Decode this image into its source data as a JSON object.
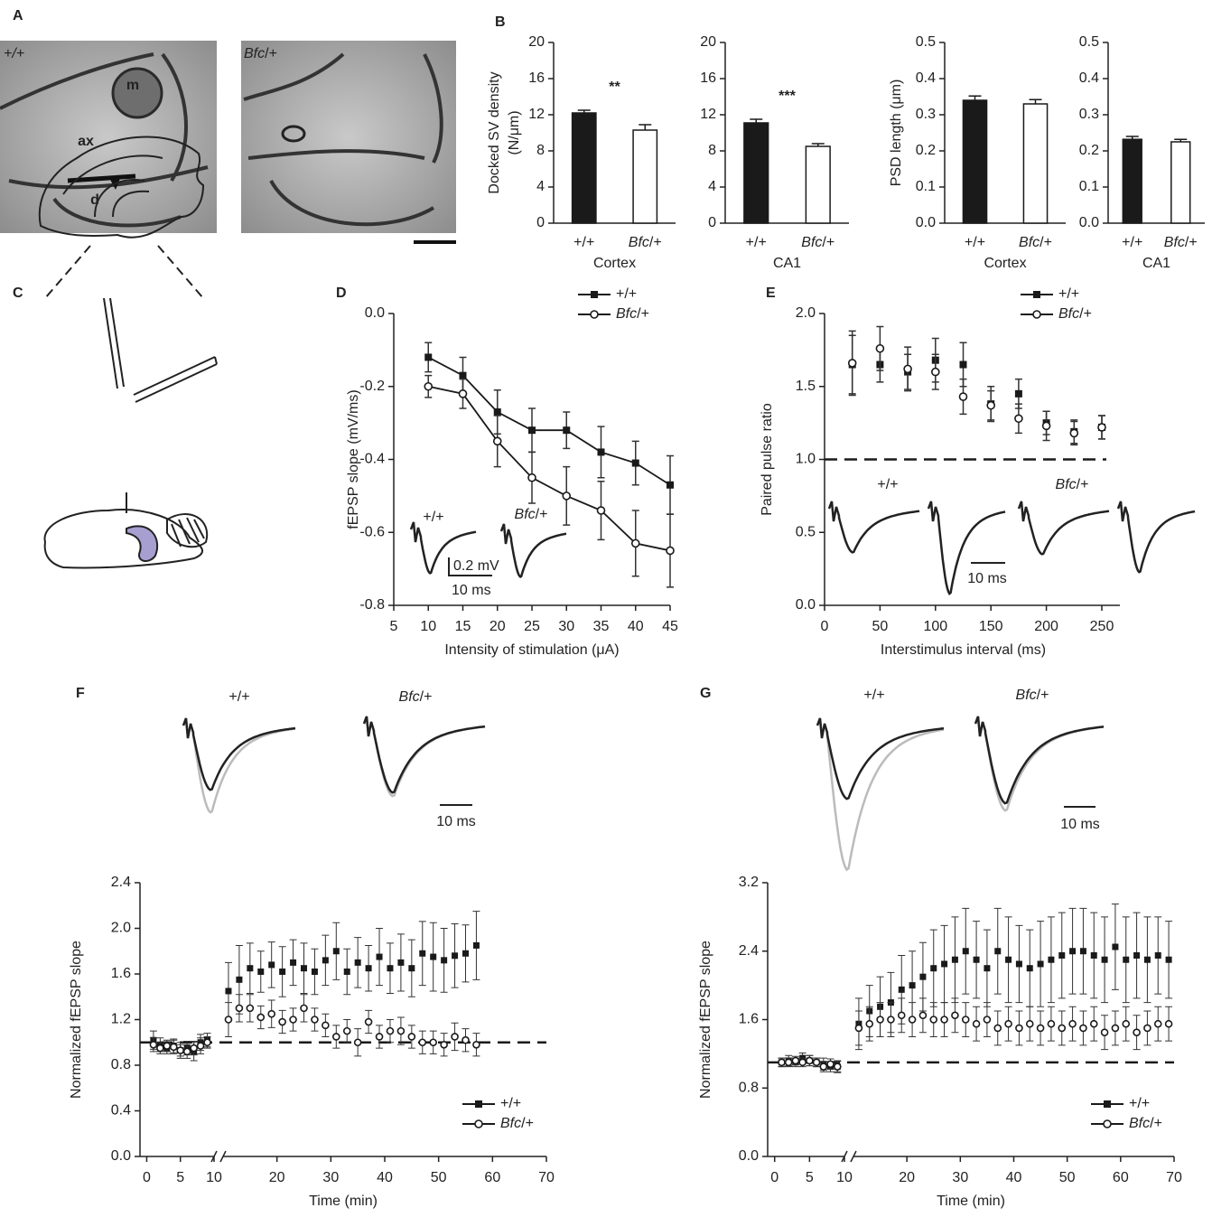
{
  "panel_labels": [
    "A",
    "B",
    "C",
    "D",
    "E",
    "F",
    "G"
  ],
  "micrographs": [
    {
      "label": "+/+",
      "annotations": [
        "m",
        "ax",
        "d"
      ]
    },
    {
      "label": "Bfc/+"
    }
  ],
  "chart_data": [
    {
      "type": "bar",
      "ylabel": [
        "Docked SV density",
        "(N/μm)"
      ],
      "categories": [
        "+/+",
        "Bfc/+"
      ],
      "group": "Cortex",
      "values": [
        12.2,
        10.3
      ],
      "errors": [
        0.3,
        0.6
      ],
      "colors": [
        "#1a1a1a",
        "#ffffff"
      ],
      "annotation": "**",
      "ylim": [
        0,
        20
      ],
      "yticks": [
        0,
        4,
        8,
        12,
        16,
        20
      ]
    },
    {
      "type": "bar",
      "categories": [
        "+/+",
        "Bfc/+"
      ],
      "group": "CA1",
      "values": [
        11.1,
        8.5
      ],
      "errors": [
        0.4,
        0.3
      ],
      "colors": [
        "#1a1a1a",
        "#ffffff"
      ],
      "annotation": "***",
      "ylim": [
        0,
        20
      ],
      "yticks": [
        0,
        4,
        8,
        12,
        16,
        20
      ]
    },
    {
      "type": "bar",
      "ylabel": "PSD length (μm)",
      "categories": [
        "+/+",
        "Bfc/+"
      ],
      "group": "Cortex",
      "values": [
        0.34,
        0.33
      ],
      "errors": [
        0.012,
        0.012
      ],
      "colors": [
        "#1a1a1a",
        "#ffffff"
      ],
      "ylim": [
        0,
        0.5
      ],
      "yticks": [
        {
          "value": 0,
          "label": "0.0"
        },
        0.1,
        0.2,
        0.3,
        0.4,
        0.5
      ]
    },
    {
      "type": "bar",
      "categories": [
        "+/+",
        "Bfc/+"
      ],
      "group": "CA1",
      "values": [
        0.232,
        0.225
      ],
      "errors": [
        0.008,
        0.007
      ],
      "colors": [
        "#1a1a1a",
        "#ffffff"
      ],
      "ylim": [
        0,
        0.5
      ],
      "yticks": [
        {
          "value": 0,
          "label": "0.0"
        },
        0.1,
        0.2,
        0.3,
        0.4,
        0.5
      ]
    },
    {
      "type": "line",
      "xlabel": "Intensity of stimulation (μA)",
      "ylabel": "fEPSP slope (mV/ms)",
      "x": [
        10,
        15,
        20,
        25,
        30,
        35,
        40,
        45
      ],
      "series": [
        {
          "name": "+/+",
          "color": "#1a1a1a",
          "marker": "square",
          "values": [
            -0.12,
            -0.17,
            -0.27,
            -0.32,
            -0.32,
            -0.38,
            -0.41,
            -0.47
          ],
          "errors": [
            0.04,
            0.05,
            0.06,
            0.06,
            0.05,
            0.07,
            0.06,
            0.08
          ]
        },
        {
          "name": "Bfc/+",
          "color": "#1a1a1a",
          "marker": "circle",
          "values": [
            -0.2,
            -0.22,
            -0.35,
            -0.45,
            -0.5,
            -0.54,
            -0.63,
            -0.65
          ],
          "errors": [
            0.03,
            0.04,
            0.07,
            0.07,
            0.08,
            0.08,
            0.09,
            0.1
          ]
        }
      ],
      "xlim": [
        5,
        45
      ],
      "xticks": [
        5,
        10,
        15,
        20,
        25,
        30,
        35,
        40,
        45
      ],
      "ylim": [
        -0.8,
        0
      ],
      "yticks": [
        -0.8,
        -0.6,
        -0.4,
        -0.2,
        {
          "value": 0,
          "label": "0.0"
        }
      ],
      "legend": "top-right",
      "inset": {
        "labels": [
          "+/+",
          "Bfc/+"
        ],
        "scale_labels": [
          "0.2 mV",
          "10 ms"
        ]
      }
    },
    {
      "type": "scatter",
      "xlabel": "Interstimulus interval (ms)",
      "ylabel": "Paired pulse ratio",
      "x": [
        25,
        50,
        75,
        100,
        125,
        150,
        175,
        200,
        225,
        250
      ],
      "series": [
        {
          "name": "+/+",
          "color": "#1a1a1a",
          "marker": "square",
          "values": [
            1.65,
            1.65,
            1.6,
            1.68,
            1.65,
            1.38,
            1.45,
            1.25,
            1.19,
            1.22
          ],
          "errors": [
            0.2,
            0.12,
            0.12,
            0.15,
            0.15,
            0.12,
            0.1,
            0.08,
            0.08,
            0.08
          ]
        },
        {
          "name": "Bfc/+",
          "color": "#1a1a1a",
          "marker": "circle",
          "values": [
            1.66,
            1.76,
            1.62,
            1.6,
            1.43,
            1.37,
            1.28,
            1.23,
            1.18,
            1.22
          ],
          "errors": [
            0.22,
            0.15,
            0.15,
            0.12,
            0.12,
            0.1,
            0.1,
            0.1,
            0.08,
            0.08
          ]
        }
      ],
      "xlim": [
        0,
        250
      ],
      "xticks": [
        0,
        50,
        100,
        150,
        200,
        250
      ],
      "ylim": [
        0,
        2
      ],
      "yticks": [
        {
          "value": 0,
          "label": "0.0"
        },
        0.5,
        {
          "value": 1,
          "label": "1.0"
        },
        1.5,
        {
          "value": 2,
          "label": "2.0"
        }
      ],
      "hline": 1,
      "legend": "top-right",
      "inset": {
        "labels": [
          "+/+",
          "Bfc/+"
        ],
        "scale_labels": [
          "10 ms"
        ]
      }
    },
    {
      "type": "scatter",
      "xlabel": "Time (min)",
      "ylabel": "Normalized fEPSP slope",
      "x": [
        1,
        2,
        3,
        4,
        5,
        6,
        7,
        8,
        9,
        11,
        13,
        15,
        17,
        19,
        21,
        23,
        25,
        27,
        29,
        31,
        33,
        35,
        37,
        39,
        41,
        43,
        45,
        47,
        49,
        51,
        53,
        55,
        57
      ],
      "series": [
        {
          "name": "+/+",
          "color": "#1a1a1a",
          "marker": "square",
          "values": [
            1.02,
            0.98,
            0.95,
            0.97,
            0.93,
            0.95,
            0.92,
            1.0,
            1.02,
            1.45,
            1.55,
            1.65,
            1.62,
            1.68,
            1.62,
            1.7,
            1.65,
            1.62,
            1.72,
            1.8,
            1.62,
            1.7,
            1.65,
            1.75,
            1.65,
            1.7,
            1.65,
            1.78,
            1.75,
            1.72,
            1.76,
            1.78,
            1.85
          ],
          "errors": [
            0.08,
            0.06,
            0.05,
            0.06,
            0.07,
            0.06,
            0.08,
            0.07,
            0.06,
            0.25,
            0.3,
            0.22,
            0.18,
            0.2,
            0.22,
            0.2,
            0.22,
            0.2,
            0.22,
            0.25,
            0.2,
            0.22,
            0.2,
            0.25,
            0.22,
            0.25,
            0.25,
            0.28,
            0.3,
            0.28,
            0.28,
            0.25,
            0.3
          ]
        },
        {
          "name": "Bfc/+",
          "color": "#1a1a1a",
          "marker": "circle",
          "values": [
            0.98,
            0.95,
            0.97,
            0.96,
            0.93,
            0.92,
            0.95,
            0.97,
            1.0,
            1.2,
            1.3,
            1.3,
            1.22,
            1.25,
            1.18,
            1.2,
            1.3,
            1.2,
            1.15,
            1.05,
            1.1,
            1.0,
            1.18,
            1.05,
            1.1,
            1.1,
            1.05,
            1.0,
            1.0,
            0.98,
            1.05,
            1.02,
            0.98
          ],
          "errors": [
            0.06,
            0.05,
            0.05,
            0.06,
            0.05,
            0.06,
            0.06,
            0.07,
            0.05,
            0.15,
            0.12,
            0.12,
            0.1,
            0.12,
            0.1,
            0.1,
            0.12,
            0.1,
            0.1,
            0.1,
            0.1,
            0.12,
            0.1,
            0.1,
            0.1,
            0.12,
            0.1,
            0.1,
            0.1,
            0.1,
            0.12,
            0.1,
            0.1
          ]
        }
      ],
      "xlim": [
        -1,
        70
      ],
      "axis_break": 10,
      "xticks": [
        0,
        5,
        10,
        20,
        30,
        40,
        50,
        60,
        70
      ],
      "ylim": [
        0,
        2.4
      ],
      "yticks": [
        {
          "value": 0,
          "label": "0.0"
        },
        0.4,
        0.8,
        1.2,
        1.6,
        {
          "value": 2,
          "label": "2.0"
        },
        2.4
      ],
      "hline": 1,
      "legend": "bottom-right",
      "inset": {
        "labels": [
          "+/+",
          "Bfc/+"
        ],
        "scale_labels": [
          "10 ms"
        ]
      }
    },
    {
      "type": "scatter",
      "xlabel": "Time (min)",
      "ylabel": "Normalized fEPSP slope",
      "x": [
        1,
        2,
        3,
        4,
        5,
        6,
        7,
        8,
        9,
        11,
        13,
        15,
        17,
        19,
        21,
        23,
        25,
        27,
        29,
        31,
        33,
        35,
        37,
        39,
        41,
        43,
        45,
        47,
        49,
        51,
        53,
        55,
        57,
        59,
        61,
        63,
        65,
        67,
        69
      ],
      "series": [
        {
          "name": "+/+",
          "color": "#1a1a1a",
          "marker": "square",
          "values": [
            1.1,
            1.12,
            1.1,
            1.15,
            1.12,
            1.1,
            1.08,
            1.05,
            1.05,
            1.55,
            1.7,
            1.75,
            1.8,
            1.95,
            2.0,
            2.1,
            2.2,
            2.25,
            2.3,
            2.4,
            2.3,
            2.2,
            2.4,
            2.3,
            2.25,
            2.2,
            2.25,
            2.3,
            2.35,
            2.4,
            2.4,
            2.35,
            2.3,
            2.45,
            2.3,
            2.35,
            2.3,
            2.35,
            2.3
          ],
          "errors": [
            0.05,
            0.06,
            0.05,
            0.06,
            0.06,
            0.05,
            0.07,
            0.06,
            0.07,
            0.3,
            0.3,
            0.35,
            0.35,
            0.4,
            0.4,
            0.4,
            0.45,
            0.45,
            0.5,
            0.5,
            0.45,
            0.45,
            0.5,
            0.5,
            0.45,
            0.45,
            0.5,
            0.5,
            0.5,
            0.5,
            0.5,
            0.5,
            0.5,
            0.5,
            0.5,
            0.5,
            0.5,
            0.45,
            0.45
          ]
        },
        {
          "name": "Bfc/+",
          "color": "#1a1a1a",
          "marker": "circle",
          "values": [
            1.1,
            1.1,
            1.12,
            1.1,
            1.12,
            1.1,
            1.05,
            1.08,
            1.05,
            1.5,
            1.55,
            1.6,
            1.6,
            1.65,
            1.6,
            1.65,
            1.6,
            1.6,
            1.65,
            1.6,
            1.55,
            1.6,
            1.5,
            1.55,
            1.5,
            1.55,
            1.5,
            1.55,
            1.5,
            1.55,
            1.5,
            1.55,
            1.45,
            1.5,
            1.55,
            1.45,
            1.5,
            1.55,
            1.55
          ],
          "errors": [
            0.05,
            0.05,
            0.05,
            0.05,
            0.06,
            0.05,
            0.06,
            0.06,
            0.06,
            0.2,
            0.2,
            0.2,
            0.2,
            0.2,
            0.2,
            0.2,
            0.2,
            0.2,
            0.2,
            0.2,
            0.2,
            0.2,
            0.2,
            0.2,
            0.2,
            0.2,
            0.2,
            0.2,
            0.2,
            0.2,
            0.2,
            0.2,
            0.2,
            0.2,
            0.2,
            0.2,
            0.2,
            0.2,
            0.2
          ]
        }
      ],
      "xlim": [
        -1,
        70
      ],
      "axis_break": 10,
      "xticks": [
        0,
        5,
        10,
        20,
        30,
        40,
        50,
        60,
        70
      ],
      "ylim": [
        0,
        3.2
      ],
      "yticks": [
        {
          "value": 0,
          "label": "0.0"
        },
        0.8,
        1.6,
        2.4,
        3.2
      ],
      "hline": 1.1,
      "legend": "bottom-right",
      "inset": {
        "labels": [
          "+/+",
          "Bfc/+"
        ],
        "scale_labels": [
          "10 ms"
        ]
      }
    }
  ]
}
